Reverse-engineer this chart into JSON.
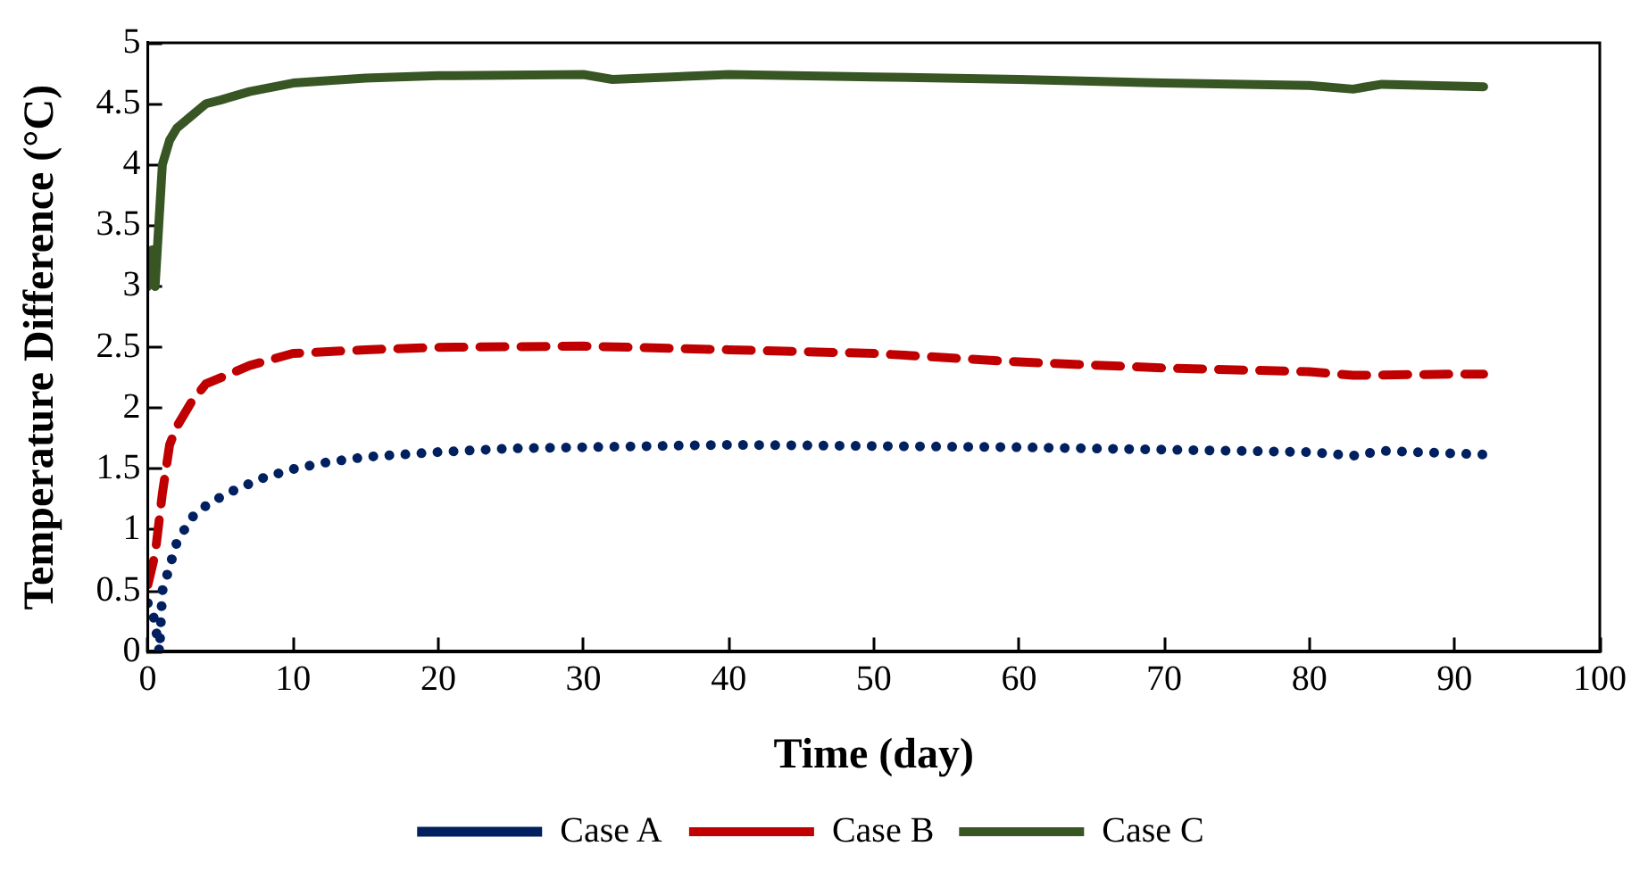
{
  "chart_data": {
    "type": "line",
    "xlabel": "Time (day)",
    "ylabel": "Temperature Difference (°C)",
    "xlim": [
      0,
      100
    ],
    "xticks": [
      0,
      10,
      20,
      30,
      40,
      50,
      60,
      70,
      80,
      90,
      100
    ],
    "ylim": [
      0,
      5
    ],
    "yticks": [
      0,
      0.5,
      1,
      1.5,
      2,
      2.5,
      3,
      3.5,
      4,
      4.5,
      5
    ],
    "grid": false,
    "legend": "bottom",
    "marker": "none",
    "series": [
      {
        "name": "Case A",
        "color": "#002060",
        "line_style": "dotted",
        "x": [
          0,
          0.3,
          0.6,
          0.8,
          1,
          1.5,
          2,
          3,
          4,
          5,
          6,
          8,
          10,
          12,
          15,
          20,
          25,
          30,
          40,
          50,
          60,
          70,
          80,
          83,
          85,
          92
        ],
        "values": [
          0.4,
          0.35,
          0.15,
          0,
          0.5,
          0.7,
          0.9,
          1.1,
          1.2,
          1.27,
          1.33,
          1.43,
          1.5,
          1.55,
          1.6,
          1.64,
          1.67,
          1.68,
          1.7,
          1.69,
          1.68,
          1.66,
          1.64,
          1.61,
          1.65,
          1.62
        ]
      },
      {
        "name": "Case B",
        "color": "#c00000",
        "line_style": "dashed",
        "x": [
          0,
          0.5,
          1,
          1.5,
          2,
          3,
          4,
          5,
          7,
          10,
          15,
          20,
          30,
          40,
          50,
          60,
          70,
          80,
          83,
          90,
          92
        ],
        "values": [
          0.55,
          0.8,
          1.3,
          1.7,
          1.85,
          2.05,
          2.2,
          2.25,
          2.35,
          2.45,
          2.48,
          2.5,
          2.51,
          2.48,
          2.45,
          2.38,
          2.33,
          2.3,
          2.27,
          2.28,
          2.28
        ]
      },
      {
        "name": "Case C",
        "color": "#375623",
        "line_style": "solid",
        "x": [
          0,
          0.3,
          0.5,
          1,
          1.5,
          2,
          3,
          4,
          5,
          7,
          10,
          15,
          20,
          30,
          32,
          40,
          50,
          60,
          70,
          80,
          83,
          85,
          92
        ],
        "values": [
          3.0,
          3.3,
          3.0,
          4.0,
          4.2,
          4.3,
          4.4,
          4.5,
          4.53,
          4.6,
          4.67,
          4.71,
          4.73,
          4.74,
          4.7,
          4.74,
          4.72,
          4.7,
          4.67,
          4.65,
          4.62,
          4.66,
          4.64
        ]
      }
    ]
  }
}
